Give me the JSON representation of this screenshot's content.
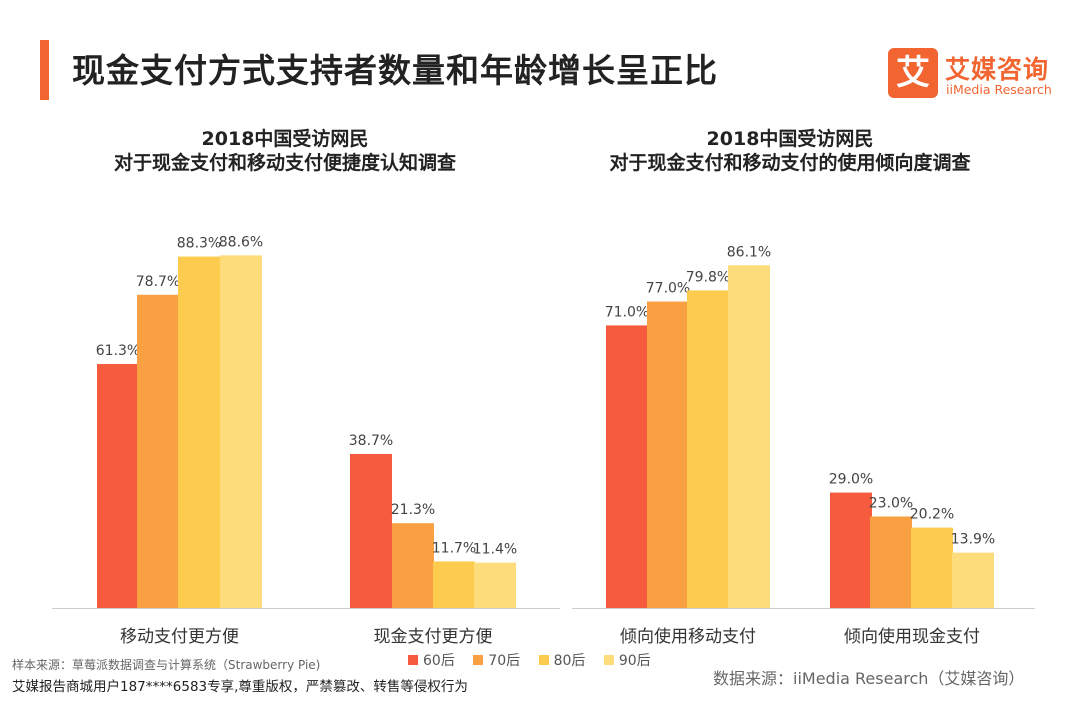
{
  "header": {
    "title": "现金支付方式支持者数量和年龄增长呈正比",
    "accent_color": "#f26531"
  },
  "logo": {
    "icon_char": "艾",
    "name_cn": "艾媒咨询",
    "name_en": "iiMedia Research",
    "color": "#f26531"
  },
  "legend": {
    "series": [
      {
        "name": "60后",
        "color": "#f55b3c"
      },
      {
        "name": "70后",
        "color": "#f9a043"
      },
      {
        "name": "80后",
        "color": "#fdcb4d"
      },
      {
        "name": "90后",
        "color": "#fddc7c"
      }
    ]
  },
  "chart_data": [
    {
      "type": "bar",
      "title": [
        "2018中国受访网民",
        "对于现金支付和移动支付便捷度认知调查"
      ],
      "categories": [
        "移动支付更方便",
        "现金支付更方便"
      ],
      "series": [
        {
          "name": "60后",
          "values": [
            61.3,
            38.7
          ]
        },
        {
          "name": "70后",
          "values": [
            78.7,
            21.3
          ]
        },
        {
          "name": "80后",
          "values": [
            88.3,
            11.7
          ]
        },
        {
          "name": "90后",
          "values": [
            88.6,
            11.4
          ]
        }
      ],
      "value_format": "percent_1dp",
      "ylim": [
        0,
        100
      ],
      "grid": false
    },
    {
      "type": "bar",
      "title": [
        "2018中国受访网民",
        "对于现金支付和移动支付的使用倾向度调查"
      ],
      "categories": [
        "倾向使用移动支付",
        "倾向使用现金支付"
      ],
      "series": [
        {
          "name": "60后",
          "values": [
            71.0,
            29.0
          ]
        },
        {
          "name": "70后",
          "values": [
            77.0,
            23.0
          ]
        },
        {
          "name": "80后",
          "values": [
            79.8,
            20.2
          ]
        },
        {
          "name": "90后",
          "values": [
            86.1,
            13.9
          ]
        }
      ],
      "value_format": "percent_1dp",
      "ylim": [
        0,
        100
      ],
      "grid": false
    }
  ],
  "footer": {
    "sample_note": "样本来源：草莓派数据调查与计算系统（Strawberry Pie)",
    "copyright": "艾媒报告商城用户187****6583专享,尊重版权，严禁篡改、转售等侵权行为",
    "data_source": "数据来源：iiMedia Research（艾媒咨询）"
  }
}
